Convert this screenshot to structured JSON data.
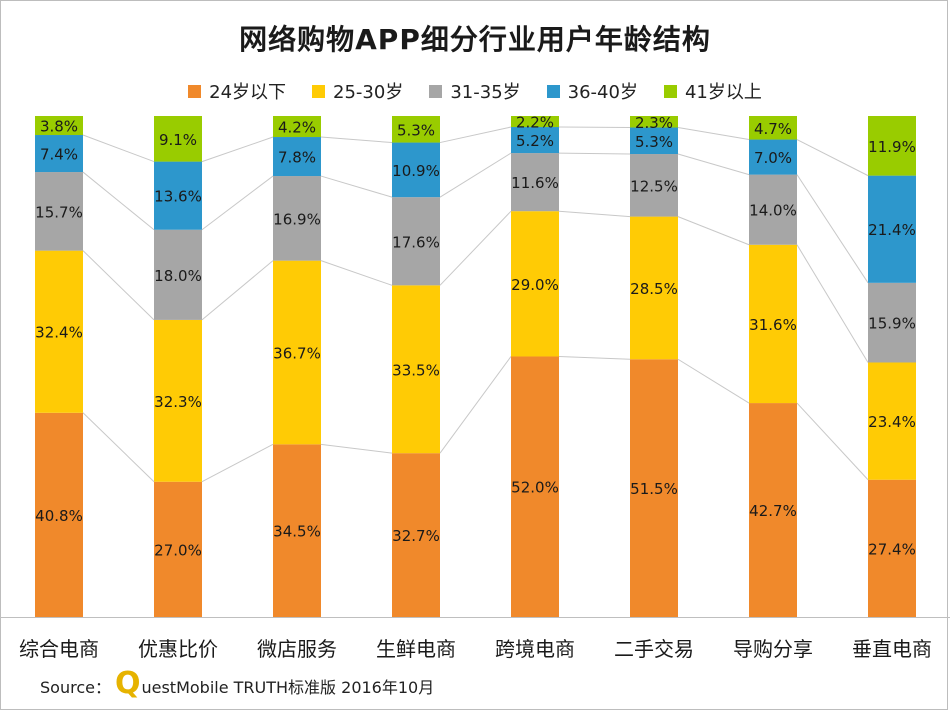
{
  "title": "网络购物APP细分行业用户年龄结构",
  "source": {
    "prefix": "Source：",
    "logo_letter": "Q",
    "rest": "uestMobile TRUTH标准版 2016年10月"
  },
  "chart_data": {
    "type": "bar",
    "stacked": true,
    "percent_stacked": true,
    "title": "网络购物APP细分行业用户年龄结构",
    "legend_position": "top",
    "categories": [
      "综合电商",
      "优惠比价",
      "微店服务",
      "生鲜电商",
      "跨境电商",
      "二手交易",
      "导购分享",
      "垂直电商"
    ],
    "series": [
      {
        "name": "24岁以下",
        "color": "#f0892b",
        "values": [
          40.8,
          27.0,
          34.5,
          32.7,
          52.0,
          51.5,
          42.7,
          27.4
        ],
        "labels": [
          "40.8%",
          "27.0%",
          "34.5%",
          "32.7%",
          "52.0%",
          "51.5%",
          "42.7%",
          "27.4%"
        ]
      },
      {
        "name": "25-30岁",
        "color": "#ffcb05",
        "values": [
          32.4,
          32.3,
          36.7,
          33.5,
          29.0,
          28.5,
          31.6,
          23.4
        ],
        "labels": [
          "32.4%",
          "32.3%",
          "36.7%",
          "33.5%",
          "29.0%",
          "28.5%",
          "31.6%",
          "23.4%"
        ]
      },
      {
        "name": "31-35岁",
        "color": "#a6a6a6",
        "values": [
          15.7,
          18.0,
          16.9,
          17.6,
          11.6,
          12.5,
          14.0,
          15.9
        ],
        "labels": [
          "15.7%",
          "18.0%",
          "16.9%",
          "17.6%",
          "11.6%",
          "12.5%",
          "14.0%",
          "15.9%"
        ]
      },
      {
        "name": "36-40岁",
        "color": "#2d97cc",
        "values": [
          7.4,
          13.6,
          7.8,
          10.9,
          5.2,
          5.3,
          7.0,
          21.4
        ],
        "labels": [
          "7.4%",
          "13.6%",
          "7.8%",
          "10.9%",
          "5.2%",
          "5.3%",
          "7.0%",
          "21.4%"
        ]
      },
      {
        "name": "41岁以上",
        "color": "#99cc00",
        "values": [
          3.8,
          9.1,
          4.2,
          5.3,
          2.2,
          2.3,
          4.7,
          11.9
        ],
        "labels": [
          "3.8%",
          "9.1%",
          "4.2%",
          "5.3%",
          "2.2%",
          "2.3%",
          "4.7%",
          "11.9%"
        ]
      }
    ],
    "ylim": [
      0,
      100
    ],
    "grid": false,
    "connector_lines": true
  }
}
